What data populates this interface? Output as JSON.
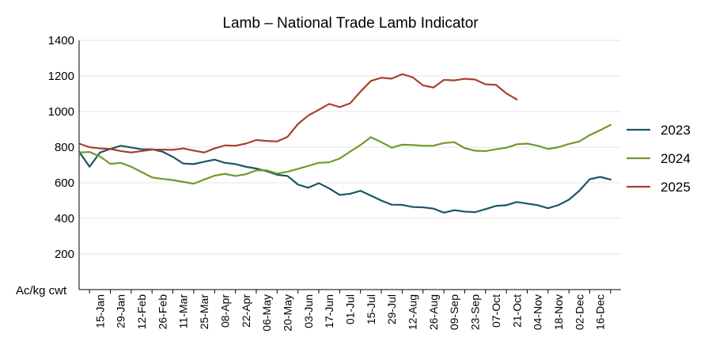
{
  "chart_data": {
    "type": "line",
    "title": "Lamb – National Trade Lamb Indicator",
    "ylabel": "Ac/kg cwt",
    "xlabel": "",
    "ylim": [
      0,
      1400
    ],
    "yticks": [
      200,
      400,
      600,
      800,
      1000,
      1200,
      1400
    ],
    "grid": "horizontal",
    "legend_position": "right",
    "x": [
      "1-Jan",
      "8-Jan",
      "15-Jan",
      "22-Jan",
      "29-Jan",
      "5-Feb",
      "12-Feb",
      "19-Feb",
      "26-Feb",
      "4-Mar",
      "11-Mar",
      "18-Mar",
      "25-Mar",
      "1-Apr",
      "8-Apr",
      "15-Apr",
      "22-Apr",
      "29-Apr",
      "6-May",
      "13-May",
      "20-May",
      "27-May",
      "3-Jun",
      "10-Jun",
      "17-Jun",
      "24-Jun",
      "1-Jul",
      "8-Jul",
      "15-Jul",
      "22-Jul",
      "29-Jul",
      "5-Aug",
      "12-Aug",
      "19-Aug",
      "26-Aug",
      "2-Sep",
      "9-Sep",
      "16-Sep",
      "23-Sep",
      "30-Sep",
      "7-Oct",
      "14-Oct",
      "21-Oct",
      "28-Oct",
      "4-Nov",
      "11-Nov",
      "18-Nov",
      "25-Nov",
      "2-Dec",
      "9-Dec",
      "16-Dec",
      "23-Dec",
      "30-Dec"
    ],
    "x_tick_labels": [
      "15-Jan",
      "29-Jan",
      "12-Feb",
      "26-Feb",
      "11-Mar",
      "25-Mar",
      "08-Apr",
      "22-Apr",
      "06-May",
      "20-May",
      "03-Jun",
      "17-Jun",
      "01-Jul",
      "15-Jul",
      "29-Jul",
      "12-Aug",
      "26-Aug",
      "09-Sep",
      "23-Sep",
      "07-Oct",
      "21-Oct",
      "04-Nov",
      "18-Nov",
      "02-Dec",
      "16-Dec"
    ],
    "series": [
      {
        "name": "2023",
        "color": "#1b5664",
        "values": [
          775,
          690,
          770,
          790,
          808,
          798,
          788,
          788,
          775,
          745,
          708,
          705,
          718,
          730,
          712,
          705,
          690,
          680,
          665,
          645,
          638,
          590,
          572,
          598,
          568,
          532,
          538,
          555,
          528,
          500,
          477,
          476,
          464,
          462,
          455,
          432,
          446,
          438,
          435,
          452,
          470,
          474,
          492,
          483,
          474,
          457,
          475,
          505,
          555,
          620,
          633,
          618,
          null
        ]
      },
      {
        "name": "2024",
        "color": "#6f9a2b",
        "values": [
          770,
          773,
          748,
          706,
          712,
          690,
          660,
          630,
          622,
          615,
          605,
          595,
          618,
          640,
          650,
          638,
          648,
          670,
          670,
          652,
          662,
          678,
          695,
          712,
          715,
          736,
          775,
          812,
          856,
          828,
          797,
          814,
          812,
          808,
          808,
          823,
          828,
          795,
          780,
          778,
          788,
          797,
          816,
          820,
          808,
          790,
          800,
          818,
          832,
          868,
          895,
          925,
          null
        ]
      },
      {
        "name": "2025",
        "color": "#a9412e",
        "values": [
          820,
          800,
          793,
          790,
          778,
          770,
          778,
          786,
          786,
          785,
          793,
          781,
          770,
          793,
          810,
          808,
          820,
          840,
          835,
          832,
          858,
          930,
          978,
          1010,
          1043,
          1025,
          1046,
          1112,
          1172,
          1190,
          1185,
          1210,
          1193,
          1147,
          1135,
          1178,
          1175,
          1184,
          1180,
          1153,
          1150,
          1102,
          1068,
          null,
          null,
          null,
          null,
          null,
          null,
          null,
          null,
          null,
          null
        ]
      }
    ]
  }
}
